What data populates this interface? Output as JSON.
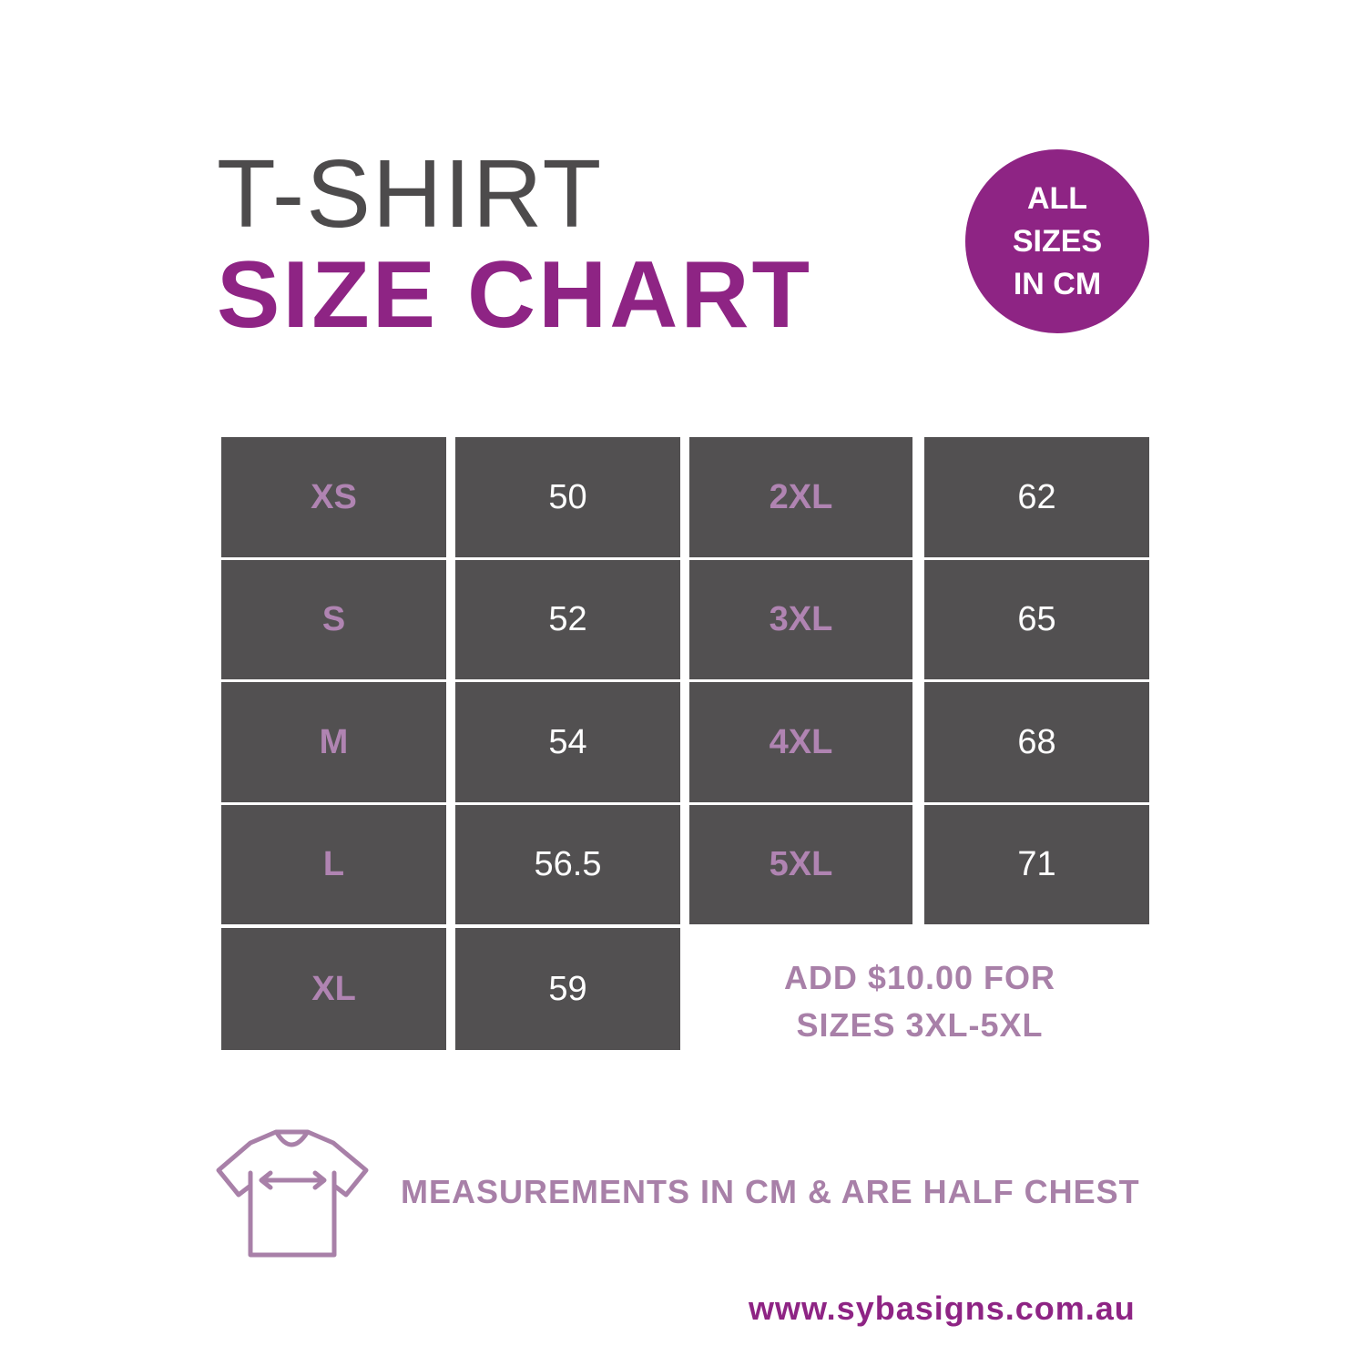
{
  "header": {
    "title_line1": "T-SHIRT",
    "title_line2": "SIZE CHART"
  },
  "badge": {
    "line1": "ALL",
    "line2": "SIZES",
    "line3": "IN CM"
  },
  "table": {
    "left": [
      {
        "size": "XS",
        "value": "50"
      },
      {
        "size": "S",
        "value": "52"
      },
      {
        "size": "M",
        "value": "54"
      },
      {
        "size": "L",
        "value": "56.5"
      },
      {
        "size": "XL",
        "value": "59"
      }
    ],
    "right": [
      {
        "size": "2XL",
        "value": "62"
      },
      {
        "size": "3XL",
        "value": "65"
      },
      {
        "size": "4XL",
        "value": "68"
      },
      {
        "size": "5XL",
        "value": "71"
      }
    ]
  },
  "note": {
    "line1": "ADD $10.00 FOR",
    "line2": "SIZES 3XL-5XL"
  },
  "footer": {
    "measurement_text": "MEASUREMENTS IN CM & ARE HALF CHEST",
    "url": "www.sybasigns.com.au",
    "icon": "tshirt-chest-measure-icon"
  },
  "colors": {
    "brand_purple": "#8e2484",
    "light_purple": "#a880a8",
    "cell_gray": "#525051",
    "title_gray": "#4d4b4c"
  }
}
